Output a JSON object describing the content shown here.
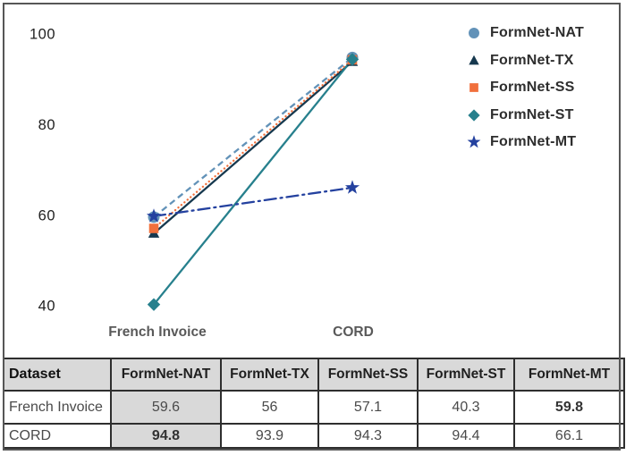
{
  "chart_data": {
    "type": "line",
    "title": "",
    "xlabel": "",
    "ylabel": "",
    "categories": [
      "French Invoice",
      "CORD"
    ],
    "y_ticks": [
      100,
      80,
      60,
      40
    ],
    "ylim": [
      30,
      106
    ],
    "grid": false,
    "legend_position": "top-right",
    "series": [
      {
        "name": "FormNet-NAT",
        "values": [
          59.6,
          94.8
        ],
        "color": "#6292b8",
        "line_style": "dashed",
        "marker": "circle"
      },
      {
        "name": "FormNet-TX",
        "values": [
          56.0,
          93.9
        ],
        "color": "#16384e",
        "line_style": "solid",
        "marker": "triangle"
      },
      {
        "name": "FormNet-SS",
        "values": [
          57.1,
          94.3
        ],
        "color": "#f1703c",
        "line_style": "dotted",
        "marker": "square"
      },
      {
        "name": "FormNet-ST",
        "values": [
          40.3,
          94.4
        ],
        "color": "#27808d",
        "line_style": "solid",
        "marker": "diamond"
      },
      {
        "name": "FormNet-MT",
        "values": [
          59.8,
          66.1
        ],
        "color": "#24419f",
        "line_style": "dashdot",
        "marker": "star"
      }
    ]
  },
  "table": {
    "columns": [
      "Dataset",
      "FormNet-NAT",
      "FormNet-TX",
      "FormNet-SS",
      "FormNet-ST",
      "FormNet-MT"
    ],
    "highlight_column": "FormNet-NAT",
    "rows": [
      {
        "dataset": "French Invoice",
        "values": [
          "59.6",
          "56",
          "57.1",
          "40.3",
          "59.8"
        ],
        "bold": [
          false,
          false,
          false,
          false,
          true
        ]
      },
      {
        "dataset": "CORD",
        "values": [
          "94.8",
          "93.9",
          "94.3",
          "94.4",
          "66.1"
        ],
        "bold": [
          true,
          false,
          false,
          false,
          false
        ]
      }
    ]
  },
  "colors": {
    "frame_border": "#565656",
    "table_header_bg": "#d9d9d9",
    "highlight_col_bg": "#d9d9d9",
    "tick_label": "#212121",
    "category_label": "#595959",
    "legend_text": "#2e2e2e"
  }
}
